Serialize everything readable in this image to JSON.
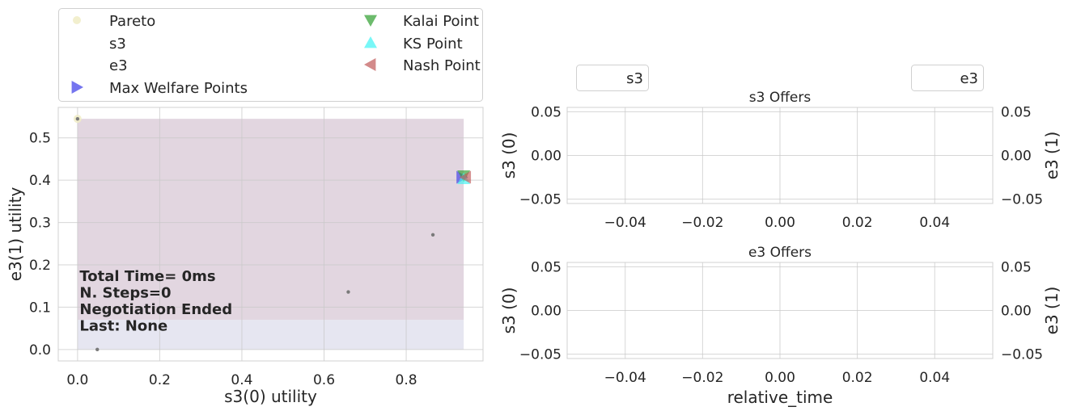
{
  "colors": {
    "pareto": "#f0ecc6",
    "outcomes": "#7a7a7a",
    "zone_upper": "#e2d6e0",
    "zone_lower": "#e6e6f1",
    "max_welfare": "#3b3be8",
    "kalai": "#2e9e2e",
    "ks": "#3ef3f3",
    "nash": "#c05858",
    "grid": "#c8c8c8",
    "spine": "#d0d0d0",
    "text": "#262626"
  },
  "chart_data": [
    {
      "id": "utility-space",
      "type": "scatter",
      "xlabel": "s3(0) utility",
      "ylabel": "e3(1) utility",
      "xlim": [
        -0.047,
        0.987
      ],
      "ylim": [
        -0.027,
        0.572
      ],
      "xticks": [
        0.0,
        0.2,
        0.4,
        0.6,
        0.8
      ],
      "xtick_labels": [
        "0.0",
        "0.2",
        "0.4",
        "0.6",
        "0.8"
      ],
      "yticks": [
        0.0,
        0.1,
        0.2,
        0.3,
        0.4,
        0.5
      ],
      "ytick_labels": [
        "0.0",
        "0.1",
        "0.2",
        "0.3",
        "0.4",
        "0.5"
      ],
      "grid": true,
      "legend_position": "above",
      "legend": [
        {
          "label": "Pareto",
          "marker": "circle",
          "color_key": "pareto"
        },
        {
          "label": "s3",
          "marker": "none",
          "color_key": "none"
        },
        {
          "label": "e3",
          "marker": "none",
          "color_key": "none"
        },
        {
          "label": "Max Welfare Points",
          "marker": "triangle-right",
          "color_key": "max_welfare"
        },
        {
          "label": "Kalai Point",
          "marker": "triangle-down",
          "color_key": "kalai"
        },
        {
          "label": "KS Point",
          "marker": "triangle-up",
          "color_key": "ks"
        },
        {
          "label": "Nash Point",
          "marker": "triangle-left",
          "color_key": "nash"
        }
      ],
      "regions": [
        {
          "x": [
            0.0,
            0.94
          ],
          "y": [
            0.0,
            0.07
          ],
          "color_key": "zone_lower"
        },
        {
          "x": [
            0.0,
            0.94
          ],
          "y": [
            0.07,
            0.545
          ],
          "color_key": "zone_upper"
        }
      ],
      "outcomes": [
        {
          "x": 0.0,
          "y": 0.545
        },
        {
          "x": 0.048,
          "y": 0.0
        },
        {
          "x": 0.659,
          "y": 0.136
        },
        {
          "x": 0.865,
          "y": 0.271
        },
        {
          "x": 0.94,
          "y": 0.407
        }
      ],
      "pareto": [
        {
          "x": 0.0,
          "y": 0.545
        },
        {
          "x": 0.94,
          "y": 0.407
        }
      ],
      "special_points": [
        {
          "name": "max-welfare-point",
          "x": 0.935,
          "y": 0.407,
          "marker": "triangle-right",
          "color_key": "max_welfare"
        },
        {
          "name": "kalai-point",
          "x": 0.94,
          "y": 0.411,
          "marker": "triangle-down",
          "color_key": "kalai"
        },
        {
          "name": "ks-point",
          "x": 0.94,
          "y": 0.403,
          "marker": "triangle-up",
          "color_key": "ks"
        },
        {
          "name": "nash-point",
          "x": 0.945,
          "y": 0.407,
          "marker": "triangle-left",
          "color_key": "nash"
        }
      ],
      "annotation": {
        "lines": [
          "Total Time= 0ms",
          "N. Steps=0",
          "Negotiation Ended",
          "Last: None"
        ],
        "anchor": [
          0.005,
          0.045
        ]
      }
    },
    {
      "id": "s3-offers",
      "type": "line",
      "title": "s3 Offers",
      "xlabel": "",
      "ylabel": "s3 (0)",
      "y2label": "e3 (1)",
      "xlim": [
        -0.055,
        0.055
      ],
      "ylim": [
        -0.055,
        0.055
      ],
      "xticks": [
        -0.04,
        -0.02,
        0.0,
        0.02,
        0.04
      ],
      "xtick_labels": [
        "−0.04",
        "−0.02",
        "0.00",
        "0.02",
        "0.04"
      ],
      "yticks": [
        -0.05,
        0.0,
        0.05
      ],
      "ytick_labels": [
        "−0.05",
        "0.00",
        "0.05"
      ],
      "grid": true,
      "legend_left": "s3",
      "legend_right": "e3",
      "series": []
    },
    {
      "id": "e3-offers",
      "type": "line",
      "title": "e3 Offers",
      "xlabel": "relative_time",
      "ylabel": "s3 (0)",
      "y2label": "e3 (1)",
      "xlim": [
        -0.055,
        0.055
      ],
      "ylim": [
        -0.055,
        0.055
      ],
      "xticks": [
        -0.04,
        -0.02,
        0.0,
        0.02,
        0.04
      ],
      "xtick_labels": [
        "−0.04",
        "−0.02",
        "0.00",
        "0.02",
        "0.04"
      ],
      "yticks": [
        -0.05,
        0.0,
        0.05
      ],
      "ytick_labels": [
        "−0.05",
        "0.00",
        "0.05"
      ],
      "grid": true,
      "series": []
    }
  ]
}
